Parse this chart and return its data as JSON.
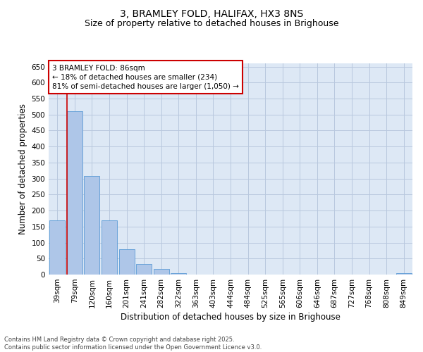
{
  "title": "3, BRAMLEY FOLD, HALIFAX, HX3 8NS",
  "subtitle": "Size of property relative to detached houses in Brighouse",
  "xlabel": "Distribution of detached houses by size in Brighouse",
  "ylabel": "Number of detached properties",
  "categories": [
    "39sqm",
    "79sqm",
    "120sqm",
    "160sqm",
    "201sqm",
    "241sqm",
    "282sqm",
    "322sqm",
    "363sqm",
    "403sqm",
    "444sqm",
    "484sqm",
    "525sqm",
    "565sqm",
    "606sqm",
    "646sqm",
    "687sqm",
    "727sqm",
    "768sqm",
    "808sqm",
    "849sqm"
  ],
  "values": [
    170,
    510,
    308,
    170,
    80,
    33,
    18,
    5,
    1,
    0,
    0,
    0,
    0,
    0,
    0,
    0,
    0,
    0,
    0,
    0,
    4
  ],
  "bar_color": "#aec6e8",
  "bar_edge_color": "#5b9bd5",
  "vline_color": "#cc0000",
  "vline_x": 0.575,
  "annotation_text": "3 BRAMLEY FOLD: 86sqm\n← 18% of detached houses are smaller (234)\n81% of semi-detached houses are larger (1,050) →",
  "annotation_box_color": "#ffffff",
  "annotation_box_edge_color": "#cc0000",
  "ylim": [
    0,
    660
  ],
  "yticks": [
    0,
    50,
    100,
    150,
    200,
    250,
    300,
    350,
    400,
    450,
    500,
    550,
    600,
    650
  ],
  "ax_background_color": "#dde8f5",
  "background_color": "#ffffff",
  "grid_color": "#b8c8de",
  "title_fontsize": 10,
  "subtitle_fontsize": 9,
  "axis_label_fontsize": 8.5,
  "tick_fontsize": 7.5,
  "annotation_fontsize": 7.5,
  "footer_line1": "Contains HM Land Registry data © Crown copyright and database right 2025.",
  "footer_line2": "Contains public sector information licensed under the Open Government Licence v3.0."
}
